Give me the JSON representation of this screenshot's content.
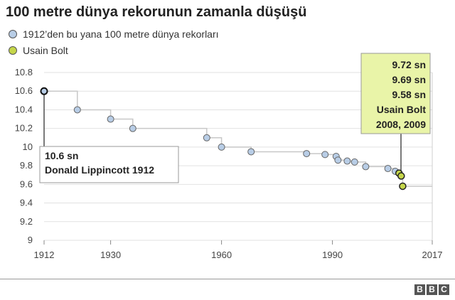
{
  "title": "100 metre dünya rekorunun zamanla düşüşü",
  "legend": [
    {
      "label": "1912’den bu yana 100 metre dünya rekorları",
      "color": "#b8cde6"
    },
    {
      "label": "Usain Bolt",
      "color": "#c5d64a"
    }
  ],
  "annotations": {
    "first": {
      "lines": [
        "10.6 sn",
        "Donald Lippincott 1912"
      ]
    },
    "bolt": {
      "lines": [
        "9.72 sn",
        "9.69 sn",
        "9.58 sn",
        "Usain Bolt",
        "2008, 2009"
      ],
      "fill": "#e9f4a8"
    }
  },
  "brand": {
    "letters": [
      "B",
      "B",
      "C"
    ]
  },
  "chart_data": {
    "type": "line",
    "title": "100 metre dünya rekorunun zamanla düşüşü",
    "xlabel": "",
    "ylabel": "",
    "xlim": [
      1912,
      2017
    ],
    "ylim": [
      9,
      10.8
    ],
    "x_ticks": [
      1912,
      1930,
      1960,
      1990,
      2017
    ],
    "y_ticks": [
      9,
      9.2,
      9.4,
      9.6,
      9.8,
      10,
      10.2,
      10.4,
      10.6,
      10.8
    ],
    "y_tick_labels": [
      "9",
      "9.2",
      "9.4",
      "9.6",
      "9.8",
      "10",
      "10.2",
      "10.4",
      "10.6",
      "10.8"
    ],
    "grid": "horizontal",
    "step_line_color": "#c8c8c8",
    "series": [
      {
        "name": "1912’den bu yana 100 metre dünya rekorları",
        "color": "#b8cde6",
        "points": [
          [
            1912,
            10.6
          ],
          [
            1921,
            10.4
          ],
          [
            1930,
            10.3
          ],
          [
            1936,
            10.2
          ],
          [
            1956,
            10.1
          ],
          [
            1960,
            10.0
          ],
          [
            1968,
            9.95
          ],
          [
            1983,
            9.93
          ],
          [
            1988,
            9.92
          ],
          [
            1991,
            9.9
          ],
          [
            1991.5,
            9.86
          ],
          [
            1994,
            9.85
          ],
          [
            1996,
            9.84
          ],
          [
            1999,
            9.79
          ],
          [
            2005,
            9.77
          ],
          [
            2007,
            9.74
          ]
        ]
      },
      {
        "name": "Usain Bolt",
        "color": "#c5d64a",
        "points": [
          [
            2008,
            9.72
          ],
          [
            2008.6,
            9.69
          ],
          [
            2009,
            9.58
          ]
        ]
      }
    ]
  }
}
